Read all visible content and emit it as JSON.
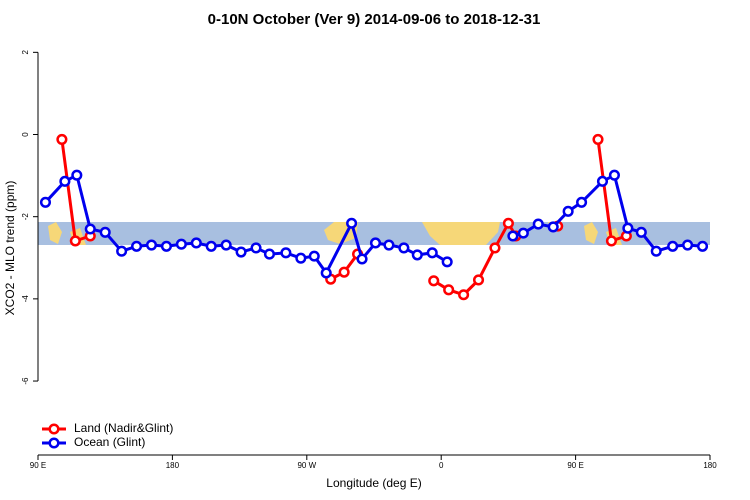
{
  "chart_data": {
    "type": "line",
    "title": "0-10N October (Ver 9)   2014-09-06 to 2018-12-31",
    "x_label": "Longitude (deg E)",
    "y_label": "XCO2 - MLO trend (ppm)",
    "xlim": [
      90,
      540
    ],
    "ylim": [
      -7.8,
      2.3
    ],
    "xticks": [
      {
        "value": 90,
        "label": "90 E"
      },
      180,
      {
        "value": 270,
        "label": "90 W"
      },
      {
        "value": 360,
        "label": "0"
      },
      {
        "value": 450,
        "label": "90 E"
      },
      {
        "value": 540,
        "label": "180"
      }
    ],
    "yticks": [
      -6,
      -4,
      -2,
      0,
      2
    ],
    "legend": "bottom-left",
    "series": [
      {
        "name": "Land (Nadir&Glint)",
        "color": "#ff0000",
        "x": [
          106,
          115,
          125,
          null,
          286,
          295,
          304,
          null,
          355,
          365,
          375,
          385,
          396,
          405,
          410,
          null,
          438,
          null,
          465,
          474,
          484
        ],
        "values": [
          -0.12,
          -2.59,
          -2.47,
          null,
          -3.52,
          -3.35,
          -2.91,
          null,
          -3.56,
          -3.78,
          -3.9,
          -3.54,
          -2.76,
          -2.16,
          -2.47,
          null,
          -2.23,
          null,
          -0.12,
          -2.59,
          -2.47
        ]
      },
      {
        "name": "Ocean (Glint)",
        "color": "#0000ee",
        "x": [
          95,
          108,
          116,
          125,
          135,
          146,
          156,
          166,
          176,
          186,
          196,
          206,
          216,
          226,
          236,
          245,
          256,
          266,
          275,
          283,
          300,
          307,
          316,
          325,
          335,
          344,
          354,
          364,
          null,
          408,
          415,
          425,
          435,
          445,
          454,
          468,
          476,
          485,
          494,
          504,
          515,
          525,
          535
        ],
        "values": [
          -1.65,
          -1.14,
          -0.99,
          -2.3,
          -2.38,
          -2.84,
          -2.72,
          -2.69,
          -2.72,
          -2.67,
          -2.64,
          -2.72,
          -2.69,
          -2.86,
          -2.76,
          -2.91,
          -2.88,
          -3.01,
          -2.96,
          -3.37,
          -2.16,
          -3.03,
          -2.64,
          -2.69,
          -2.76,
          -2.93,
          -2.88,
          -3.1,
          null,
          -2.47,
          -2.4,
          -2.18,
          -2.25,
          -1.87,
          -1.65,
          -1.14,
          -0.99,
          -2.28,
          -2.38,
          -2.84,
          -2.72,
          -2.69,
          -2.72
        ]
      }
    ]
  }
}
